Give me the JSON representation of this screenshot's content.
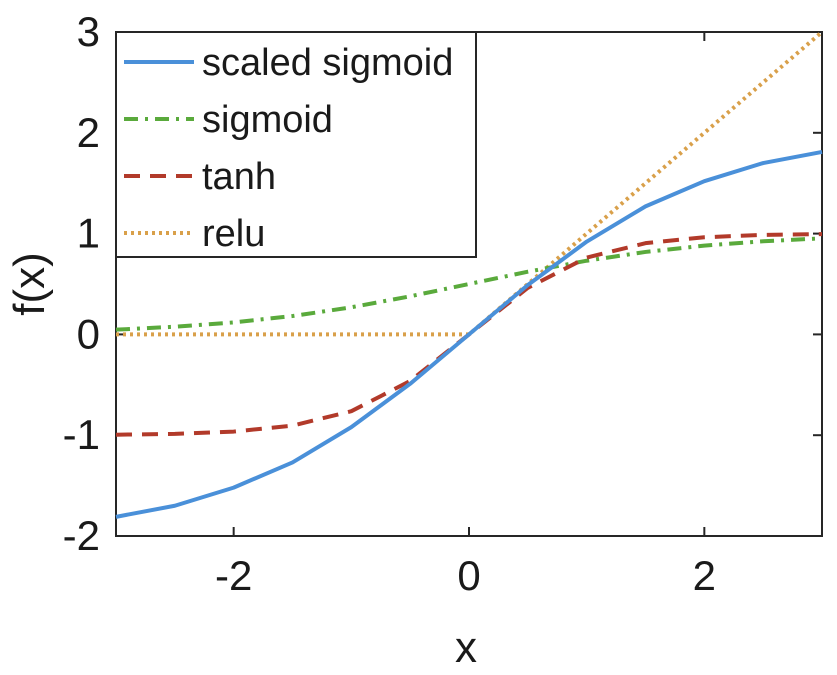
{
  "chart_data": {
    "type": "line",
    "title": "",
    "xlabel": "x",
    "ylabel": "f(x)",
    "xlim": [
      -3,
      3
    ],
    "ylim": [
      -2,
      3
    ],
    "xticks": [
      -2,
      0,
      2
    ],
    "xtick_labels": [
      "-2",
      "0",
      "2"
    ],
    "yticks": [
      -2,
      -1,
      0,
      1,
      2,
      3
    ],
    "ytick_labels": [
      "-2",
      "-1",
      "0",
      "1",
      "2",
      "3"
    ],
    "grid": false,
    "legend_position": "top-left",
    "x": [
      -3,
      -2.5,
      -2,
      -1.5,
      -1,
      -0.5,
      0,
      0.5,
      1,
      1.5,
      2,
      2.5,
      3
    ],
    "series": [
      {
        "name": "scaled sigmoid",
        "color": "#4a90d9",
        "style": "solid",
        "values": [
          -1.81,
          -1.7,
          -1.52,
          -1.27,
          -0.92,
          -0.49,
          0.0,
          0.49,
          0.92,
          1.27,
          1.52,
          1.7,
          1.81
        ]
      },
      {
        "name": "sigmoid",
        "color": "#5aaa3c",
        "style": "dashdot",
        "values": [
          0.047,
          0.076,
          0.119,
          0.182,
          0.269,
          0.378,
          0.5,
          0.622,
          0.731,
          0.818,
          0.881,
          0.924,
          0.953
        ]
      },
      {
        "name": "tanh",
        "color": "#b23a2a",
        "style": "dashed",
        "values": [
          -0.995,
          -0.987,
          -0.964,
          -0.905,
          -0.762,
          -0.462,
          0.0,
          0.462,
          0.762,
          0.905,
          0.964,
          0.987,
          0.995
        ]
      },
      {
        "name": "relu",
        "color": "#d9a04a",
        "style": "dotted",
        "values": [
          0,
          0,
          0,
          0,
          0,
          0,
          0,
          0.5,
          1,
          1.5,
          2,
          2.5,
          3
        ]
      }
    ]
  }
}
